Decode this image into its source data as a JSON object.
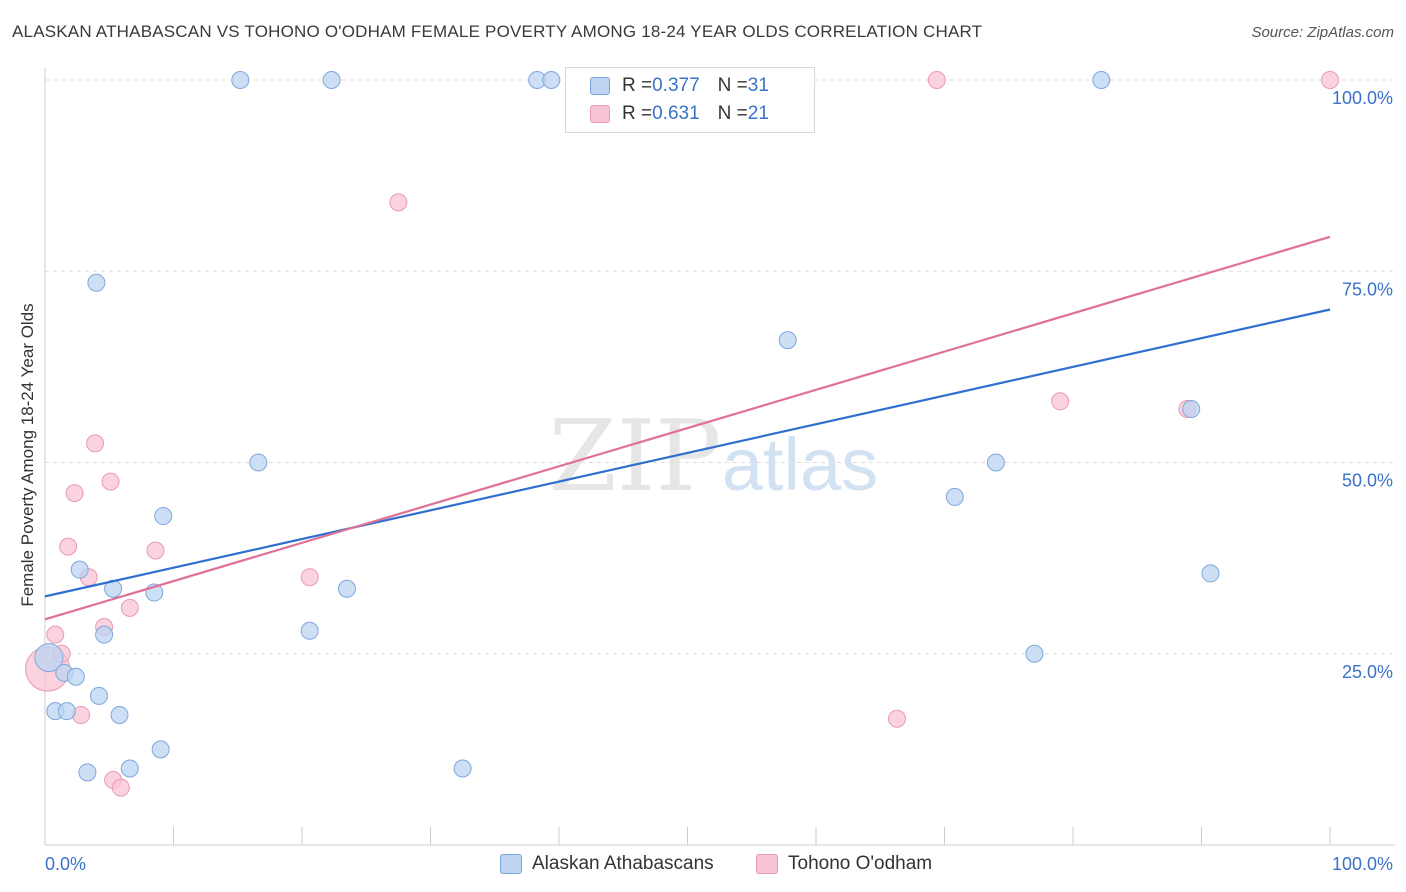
{
  "title": "ALASKAN ATHABASCAN VS TOHONO O'ODHAM FEMALE POVERTY AMONG 18-24 YEAR OLDS CORRELATION CHART",
  "source": "Source: ZipAtlas.com",
  "watermark": {
    "zip": "ZIP",
    "atlas": "atlas"
  },
  "legend": {
    "items": [
      {
        "r_label": "R = ",
        "r_value": "0.377",
        "n_label": "N = ",
        "n_value": "31"
      },
      {
        "r_label": "R = ",
        "r_value": "0.631",
        "n_label": "N = ",
        "n_value": "21"
      }
    ]
  },
  "chart_data": {
    "type": "scatter",
    "title": "ALASKAN ATHABASCAN VS TOHONO O'ODHAM FEMALE POVERTY AMONG 18-24 YEAR OLDS CORRELATION CHART",
    "xlabel": "",
    "ylabel": "Female Poverty Among 18-24 Year Olds",
    "xlim": [
      0,
      100
    ],
    "ylim": [
      0,
      100
    ],
    "x_tick_labels": [
      "0.0%",
      "100.0%"
    ],
    "y_tick_labels": [
      "25.0%",
      "50.0%",
      "75.0%",
      "100.0%"
    ],
    "y_ticks": [
      25,
      50,
      75,
      100
    ],
    "grid": true,
    "colors": {
      "blue_fill": "#bcd4f2",
      "blue_stroke": "#7ea7da",
      "blue_line": "#2f6fcf",
      "pink_fill": "#f8c4d4",
      "pink_stroke": "#ea9ab3",
      "pink_line": "#e07098",
      "axis_text": "#3a72c8",
      "grid": "#dddddd"
    },
    "series": [
      {
        "name": "Alaskan Athabascans",
        "r": 0.377,
        "n": 31,
        "trend": {
          "x0": 0,
          "y0": 32.5,
          "x1": 100,
          "y1": 70
        },
        "points": [
          {
            "x": 0.3,
            "y": 24.5,
            "size": 14
          },
          {
            "x": 0.8,
            "y": 17.5
          },
          {
            "x": 1.5,
            "y": 22.5
          },
          {
            "x": 1.7,
            "y": 17.5
          },
          {
            "x": 2.4,
            "y": 22
          },
          {
            "x": 2.7,
            "y": 36
          },
          {
            "x": 3.3,
            "y": 9.5
          },
          {
            "x": 4.0,
            "y": 73.5
          },
          {
            "x": 4.2,
            "y": 19.5
          },
          {
            "x": 4.6,
            "y": 27.5
          },
          {
            "x": 5.3,
            "y": 33.5
          },
          {
            "x": 5.8,
            "y": 17
          },
          {
            "x": 6.6,
            "y": 10
          },
          {
            "x": 8.5,
            "y": 33
          },
          {
            "x": 9.0,
            "y": 12.5
          },
          {
            "x": 9.2,
            "y": 43
          },
          {
            "x": 15.2,
            "y": 100
          },
          {
            "x": 16.6,
            "y": 50
          },
          {
            "x": 20.6,
            "y": 28
          },
          {
            "x": 22.3,
            "y": 100
          },
          {
            "x": 23.5,
            "y": 33.5
          },
          {
            "x": 32.5,
            "y": 10
          },
          {
            "x": 38.3,
            "y": 100
          },
          {
            "x": 39.4,
            "y": 100
          },
          {
            "x": 57.8,
            "y": 66
          },
          {
            "x": 70.8,
            "y": 45.5
          },
          {
            "x": 74.0,
            "y": 50
          },
          {
            "x": 77.0,
            "y": 25
          },
          {
            "x": 82.2,
            "y": 100
          },
          {
            "x": 89.2,
            "y": 57
          },
          {
            "x": 90.7,
            "y": 35.5
          }
        ]
      },
      {
        "name": "Tohono O'odham",
        "r": 0.631,
        "n": 21,
        "trend": {
          "x0": 0,
          "y0": 29.5,
          "x1": 100,
          "y1": 79.5
        },
        "points": [
          {
            "x": 0.2,
            "y": 23,
            "size": 22
          },
          {
            "x": 0.8,
            "y": 27.5
          },
          {
            "x": 1.3,
            "y": 25
          },
          {
            "x": 1.8,
            "y": 39
          },
          {
            "x": 2.3,
            "y": 46
          },
          {
            "x": 2.8,
            "y": 17
          },
          {
            "x": 3.4,
            "y": 35
          },
          {
            "x": 3.9,
            "y": 52.5
          },
          {
            "x": 4.6,
            "y": 28.5
          },
          {
            "x": 5.1,
            "y": 47.5
          },
          {
            "x": 5.3,
            "y": 8.5
          },
          {
            "x": 5.9,
            "y": 7.5
          },
          {
            "x": 6.6,
            "y": 31
          },
          {
            "x": 8.6,
            "y": 38.5
          },
          {
            "x": 20.6,
            "y": 35
          },
          {
            "x": 27.5,
            "y": 84
          },
          {
            "x": 66.3,
            "y": 16.5
          },
          {
            "x": 69.4,
            "y": 100
          },
          {
            "x": 79.0,
            "y": 58
          },
          {
            "x": 88.9,
            "y": 57
          },
          {
            "x": 100.0,
            "y": 100
          }
        ]
      }
    ]
  }
}
